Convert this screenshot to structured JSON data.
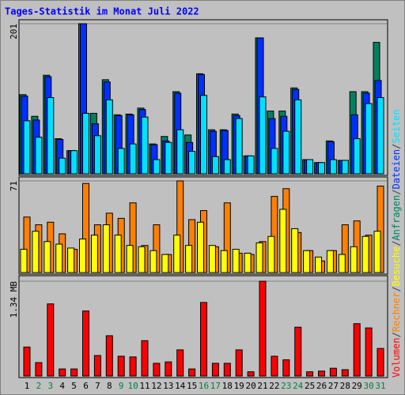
{
  "chart_data": [
    {
      "type": "bar",
      "title": "Tages-Statistik im Monat Juli 2022",
      "categories": [
        "1",
        "2",
        "3",
        "4",
        "5",
        "6",
        "7",
        "8",
        "9",
        "10",
        "11",
        "12",
        "13",
        "14",
        "15",
        "16",
        "17",
        "18",
        "19",
        "20",
        "21",
        "22",
        "23",
        "24",
        "25",
        "26",
        "27",
        "28",
        "29",
        "30",
        "31"
      ],
      "category_colors": [
        "#000000",
        "#008040",
        "#008040",
        "#000000",
        "#000000",
        "#000000",
        "#000000",
        "#000000",
        "#008040",
        "#008040",
        "#000000",
        "#000000",
        "#000000",
        "#000000",
        "#000000",
        "#008040",
        "#008040",
        "#000000",
        "#000000",
        "#000000",
        "#000000",
        "#000000",
        "#008040",
        "#008040",
        "#000000",
        "#000000",
        "#000000",
        "#000000",
        "#000000",
        "#008040",
        "#008040"
      ],
      "ylim": [
        0,
        201
      ],
      "yticks": [
        201
      ],
      "separator": "/",
      "series": [
        {
          "name": "Anfragen",
          "color": "#008060",
          "values": [
            106,
            77,
            132,
            47,
            31,
            201,
            81,
            126,
            79,
            80,
            88,
            40,
            50,
            110,
            52,
            134,
            59,
            59,
            80,
            24,
            182,
            84,
            84,
            115,
            19,
            15,
            44,
            18,
            110,
            110,
            176
          ]
        },
        {
          "name": "Dateien",
          "color": "#0030ff",
          "values": [
            104,
            72,
            130,
            46,
            31,
            201,
            67,
            123,
            78,
            79,
            86,
            39,
            44,
            108,
            42,
            133,
            57,
            58,
            78,
            24,
            182,
            74,
            77,
            113,
            19,
            15,
            43,
            18,
            79,
            108,
            125
          ]
        },
        {
          "name": "Seiten",
          "color": "#00e0ff",
          "values": [
            71,
            49,
            102,
            21,
            31,
            81,
            51,
            99,
            34,
            40,
            76,
            19,
            42,
            59,
            30,
            105,
            23,
            19,
            74,
            24,
            103,
            34,
            57,
            99,
            19,
            15,
            19,
            18,
            47,
            94,
            102
          ]
        }
      ]
    },
    {
      "type": "bar",
      "ylim": [
        0,
        71
      ],
      "yticks": [
        71
      ],
      "series": [
        {
          "name": "Rechner",
          "color": "#ff8000",
          "values": [
            43,
            37,
            39,
            30,
            18,
            69,
            37,
            46,
            42,
            54,
            21,
            37,
            14,
            71,
            41,
            48,
            20,
            54,
            15,
            14,
            24,
            59,
            65,
            31,
            17,
            9,
            17,
            37,
            40,
            29,
            67
          ]
        },
        {
          "name": "Besuche",
          "color": "#ffff00",
          "values": [
            18,
            32,
            24,
            22,
            19,
            26,
            29,
            37,
            29,
            21,
            20,
            17,
            14,
            29,
            21,
            39,
            21,
            17,
            18,
            15,
            23,
            28,
            49,
            34,
            17,
            12,
            17,
            14,
            20,
            28,
            32
          ]
        }
      ]
    },
    {
      "type": "bar",
      "ylim": [
        0,
        1.34
      ],
      "yticks": [
        {
          "value": 1.34,
          "label": "1.34 MB"
        }
      ],
      "series": [
        {
          "name": "Volumen",
          "color": "#ff0000",
          "values": [
            0.41,
            0.19,
            1.02,
            0.1,
            0.1,
            0.92,
            0.29,
            0.57,
            0.28,
            0.27,
            0.5,
            0.18,
            0.2,
            0.37,
            0.1,
            1.04,
            0.18,
            0.18,
            0.37,
            0.06,
            1.34,
            0.28,
            0.23,
            0.69,
            0.06,
            0.07,
            0.11,
            0.09,
            0.74,
            0.68,
            0.39
          ]
        }
      ]
    }
  ]
}
